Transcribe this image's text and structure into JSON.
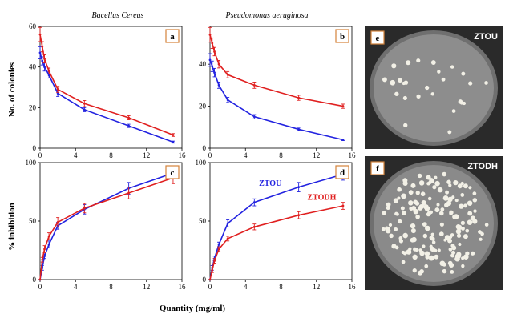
{
  "figure": {
    "column_titles": [
      "Bacellus Cereus",
      "Pseudomonas aeruginosa"
    ],
    "ylabel_top": "No. of colonies",
    "ylabel_bottom": "% inhibition",
    "xlabel": "Quantity (mg/ml)",
    "photos": [
      {
        "letter": "e",
        "label": "ZTOU",
        "colonies": "sparse"
      },
      {
        "letter": "f",
        "label": "ZTODH",
        "colonies": "dense"
      }
    ],
    "colors": {
      "ZTOU": "#2323e0",
      "ZTODH": "#e02020",
      "panel_letter_border": "#d4833a"
    }
  },
  "chart_data": [
    {
      "panel": "a",
      "type": "line",
      "x": [
        0,
        0.25,
        0.5,
        1,
        2,
        5,
        10,
        15
      ],
      "xlim": [
        0,
        16
      ],
      "xticks": [
        0,
        4,
        8,
        12,
        16
      ],
      "ylim": [
        0,
        60
      ],
      "yticks": [
        0,
        20,
        40,
        60
      ],
      "series": [
        {
          "name": "ZTOU",
          "values": [
            47,
            43,
            40,
            36,
            27,
            19,
            11,
            3
          ],
          "errors": [
            3,
            2,
            2,
            1.5,
            1.5,
            1,
            0.8,
            0.5
          ]
        },
        {
          "name": "ZTODH",
          "values": [
            56,
            50,
            44,
            38,
            29,
            22,
            15,
            6.5
          ],
          "errors": [
            3.5,
            2.5,
            2,
            1.5,
            1.5,
            1.5,
            1,
            0.7
          ]
        }
      ]
    },
    {
      "panel": "b",
      "type": "line",
      "x": [
        0,
        0.25,
        0.5,
        1,
        2,
        5,
        10,
        15
      ],
      "xlim": [
        0,
        16
      ],
      "xticks": [
        0,
        4,
        8,
        12,
        16
      ],
      "ylim": [
        0,
        58
      ],
      "yticks": [
        0,
        20,
        40
      ],
      "series": [
        {
          "name": "ZTOU",
          "values": [
            42,
            39,
            36,
            30,
            23,
            15,
            9,
            4
          ],
          "errors": [
            3,
            2.5,
            2,
            1.5,
            1.2,
            1,
            0.6,
            0.4
          ]
        },
        {
          "name": "ZTODH",
          "values": [
            54,
            50,
            46,
            40,
            35,
            30,
            24,
            20
          ],
          "errors": [
            3.5,
            2.5,
            2,
            1.8,
            1.5,
            1.5,
            1.2,
            1
          ]
        }
      ]
    },
    {
      "panel": "c",
      "type": "line",
      "x": [
        0,
        0.25,
        0.5,
        1,
        2,
        5,
        10,
        15
      ],
      "xlim": [
        0,
        16
      ],
      "xticks": [
        0,
        4,
        8,
        12,
        16
      ],
      "ylim": [
        0,
        100
      ],
      "yticks": [
        0,
        50,
        100
      ],
      "series": [
        {
          "name": "ZTOU",
          "values": [
            0,
            10,
            20,
            30,
            46,
            60,
            78,
            91
          ],
          "errors": [
            0,
            2,
            2,
            3,
            3,
            4,
            5,
            5
          ]
        },
        {
          "name": "ZTODH",
          "values": [
            0,
            17,
            26,
            37,
            49,
            61,
            74,
            87
          ],
          "errors": [
            0,
            2,
            3,
            3,
            4,
            4,
            5,
            5
          ]
        }
      ]
    },
    {
      "panel": "d",
      "type": "line",
      "x": [
        0,
        0.25,
        0.5,
        1,
        2,
        5,
        10,
        15
      ],
      "xlim": [
        0,
        16
      ],
      "xticks": [
        0,
        4,
        8,
        12,
        16
      ],
      "ylim": [
        0,
        100
      ],
      "yticks": [
        0,
        50,
        100
      ],
      "series": [
        {
          "name": "ZTOU",
          "values": [
            0,
            10,
            18,
            30,
            48,
            66,
            79,
            90
          ],
          "errors": [
            0,
            2,
            2,
            2,
            3,
            3,
            4,
            5
          ]
        },
        {
          "name": "ZTODH",
          "values": [
            0,
            8,
            16,
            26,
            35,
            45,
            55,
            63
          ],
          "errors": [
            0,
            2,
            2,
            2,
            2,
            2.5,
            3,
            3
          ]
        }
      ],
      "annotations": [
        "ZTOU",
        "ZTODH"
      ]
    }
  ]
}
